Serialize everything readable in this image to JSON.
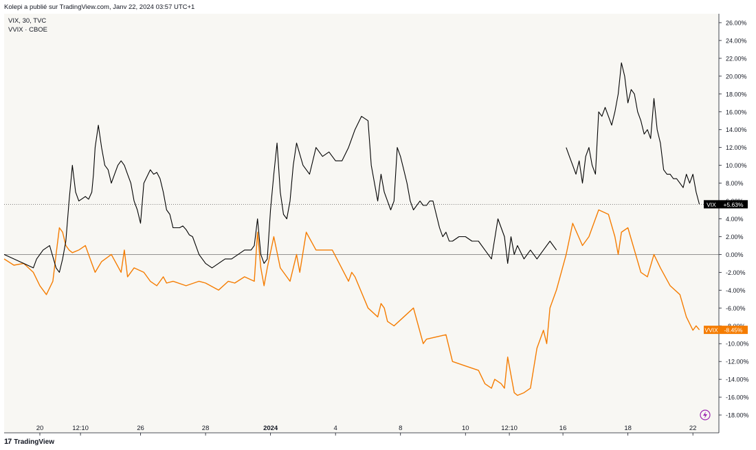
{
  "header": {
    "published": "Kolepi a publié sur TradingView.com, Janv 22, 2024 03:57 UTC+1"
  },
  "legend": {
    "line1": "VIX, 30, TVC",
    "line2": "VVIX · CBOE"
  },
  "footer": {
    "brand": "TradingView",
    "logo": "17"
  },
  "colors": {
    "background": "#f8f7f3",
    "vix": "#000000",
    "vvix": "#f57c00",
    "grid": "#555555"
  },
  "chart_data": {
    "type": "line",
    "ylabel": "",
    "ylim": [
      -20,
      27
    ],
    "yticks": [
      26,
      24,
      22,
      20,
      18,
      16,
      14,
      12,
      10,
      8,
      6,
      4,
      2,
      0,
      -2,
      -4,
      -6,
      -8,
      -10,
      -12,
      -14,
      -16,
      -18
    ],
    "ytick_labels": [
      "26.00%",
      "24.00%",
      "22.00%",
      "20.00%",
      "18.00%",
      "16.00%",
      "14.00%",
      "12.00%",
      "10.00%",
      "8.00%",
      "6.00%",
      "4.00%",
      "2.00%",
      "0.00%",
      "-2.00%",
      "-4.00%",
      "-6.00%",
      "-8.00%",
      "-10.00%",
      "-12.00%",
      "-14.00%",
      "-16.00%",
      "-18.00%"
    ],
    "xlim": [
      0,
      22
    ],
    "xticks": [
      {
        "x": 1.1,
        "label": "20"
      },
      {
        "x": 2.35,
        "label": "12:10"
      },
      {
        "x": 4.2,
        "label": "26"
      },
      {
        "x": 6.2,
        "label": "28"
      },
      {
        "x": 8.2,
        "label": "2024",
        "bold": true
      },
      {
        "x": 10.2,
        "label": "4"
      },
      {
        "x": 12.2,
        "label": "8"
      },
      {
        "x": 14.2,
        "label": "10"
      },
      {
        "x": 15.55,
        "label": "12:10"
      },
      {
        "x": 17.2,
        "label": "16"
      },
      {
        "x": 19.2,
        "label": "18"
      },
      {
        "x": 21.2,
        "label": "22"
      }
    ],
    "reference_line": 5.63,
    "series": [
      {
        "name": "VIX",
        "last_label": "+5.63%",
        "x": [
          0,
          0.3,
          0.6,
          0.9,
          1.0,
          1.2,
          1.4,
          1.6,
          1.7,
          1.8,
          1.9,
          2.0,
          2.1,
          2.2,
          2.3,
          2.5,
          2.6,
          2.7,
          2.75,
          2.8,
          2.9,
          3.0,
          3.1,
          3.2,
          3.3,
          3.4,
          3.5,
          3.6,
          3.7,
          3.8,
          3.9,
          4.0,
          4.1,
          4.2,
          4.3,
          4.5,
          4.6,
          4.7,
          4.8,
          4.9,
          5.0,
          5.1,
          5.2,
          5.4,
          5.5,
          5.6,
          5.7,
          5.8,
          5.9,
          6.0,
          6.2,
          6.4,
          6.6,
          6.8,
          7.0,
          7.2,
          7.4,
          7.6,
          7.7,
          7.8,
          7.9,
          8.0,
          8.1,
          8.2,
          8.3,
          8.4,
          8.5,
          8.6,
          8.7,
          8.8,
          8.9,
          9.0,
          9.2,
          9.4,
          9.6,
          9.8,
          10.0,
          10.2,
          10.4,
          10.6,
          10.8,
          11.0,
          11.2,
          11.3,
          11.4,
          11.5,
          11.6,
          11.7,
          11.8,
          11.9,
          12.0,
          12.1,
          12.2,
          12.3,
          12.4,
          12.5,
          12.6,
          12.8,
          12.9,
          13.0,
          13.1,
          13.2,
          13.4,
          13.5,
          13.6,
          13.7,
          13.8,
          14.0,
          14.2,
          14.4,
          14.6,
          14.8,
          15.0,
          15.2,
          15.4,
          15.5,
          15.6,
          15.7,
          15.8,
          16.0,
          16.2,
          16.4,
          16.6,
          16.8,
          17.0
        ],
        "y": [
          0,
          -0.5,
          -1.0,
          -1.5,
          -0.5,
          0.5,
          1.0,
          -1.5,
          -2.0,
          -0.5,
          1.5,
          6.0,
          10.0,
          7.0,
          6.0,
          6.5,
          6.2,
          7.0,
          9.0,
          12.0,
          14.5,
          12.0,
          10.0,
          9.5,
          8.0,
          9.0,
          10.0,
          10.5,
          10.0,
          9.0,
          8.0,
          6.0,
          5.0,
          3.5,
          8.0,
          9.5,
          9.0,
          9.2,
          8.5,
          7.0,
          5.0,
          4.5,
          3.0,
          3.0,
          3.2,
          2.8,
          2.2,
          2.0,
          1.0,
          0,
          -1.0,
          -1.5,
          -1.0,
          -0.5,
          -0.5,
          0,
          0.5,
          0.5,
          1.0,
          4.0,
          0,
          -1.0,
          -0.5,
          5.0,
          9.0,
          12.5,
          7.0,
          4.5,
          4.0,
          6.0,
          10.0,
          12.5,
          10.0,
          9.0,
          12.0,
          11.0,
          11.5,
          10.5,
          10.5,
          12.0,
          14.0,
          15.5,
          15.0,
          10.0,
          8.0,
          6.0,
          9.0,
          7.0,
          6.0,
          5.0,
          6.0,
          12.0,
          11.0,
          9.5,
          8.0,
          6.0,
          5.0,
          6.0,
          5.5,
          5.5,
          6.0,
          6.0,
          3.0,
          2.0,
          2.5,
          1.5,
          1.5,
          2.0,
          2.0,
          1.5,
          1.5,
          0.5,
          -0.5,
          4.0,
          2.0,
          -1.0,
          2.0,
          0,
          1.0,
          -0.5,
          0.5,
          -0.5,
          0.5,
          1.5,
          0.5
        ]
      },
      {
        "name": "VIX (segment 2)",
        "x": [
          17.3,
          17.4,
          17.5,
          17.6,
          17.7,
          17.8,
          17.9,
          18.0,
          18.1,
          18.2,
          18.3,
          18.4,
          18.5,
          18.6,
          18.7,
          18.8,
          18.9,
          19.0,
          19.1,
          19.2,
          19.3,
          19.4,
          19.5,
          19.6,
          19.7,
          19.8,
          19.9,
          20.0,
          20.1,
          20.2,
          20.3,
          20.4,
          20.5,
          20.6,
          20.7,
          20.8,
          20.9,
          21.0,
          21.1,
          21.2,
          21.3,
          21.4
        ],
        "y": [
          12.0,
          11.0,
          10.0,
          9.0,
          10.5,
          8.0,
          11.0,
          12.0,
          10.0,
          9.0,
          16.0,
          15.5,
          16.5,
          15.5,
          14.5,
          16.0,
          18.0,
          21.5,
          20.0,
          17.0,
          18.5,
          18.0,
          16.0,
          15.0,
          13.5,
          14.0,
          13.0,
          17.5,
          14.0,
          12.5,
          9.5,
          9.0,
          9.0,
          8.5,
          8.5,
          8.0,
          7.5,
          9.0,
          8.0,
          9.0,
          7.0,
          5.63
        ]
      },
      {
        "name": "VVIX",
        "last_label": "-8.45%",
        "x": [
          0,
          0.3,
          0.6,
          0.9,
          1.1,
          1.3,
          1.5,
          1.6,
          1.7,
          1.8,
          1.9,
          2.0,
          2.1,
          2.3,
          2.5,
          2.7,
          2.8,
          3.0,
          3.3,
          3.6,
          3.7,
          3.8,
          4.0,
          4.3,
          4.5,
          4.7,
          4.9,
          5.0,
          5.2,
          5.6,
          6.0,
          6.2,
          6.6,
          6.9,
          7.1,
          7.4,
          7.7,
          7.8,
          7.9,
          8.0,
          8.1,
          8.3,
          8.5,
          8.8,
          9.0,
          9.1,
          9.3,
          9.6,
          9.8,
          10.1,
          10.6,
          10.7,
          10.8,
          11.2,
          11.5,
          11.6,
          11.7,
          11.8,
          12.0,
          12.6,
          12.9,
          13.0,
          13.6,
          13.8,
          14.2,
          14.6,
          14.8,
          15.0,
          15.1,
          15.3,
          15.4,
          15.5,
          15.7,
          15.8,
          16.0,
          16.2,
          16.4,
          16.6,
          16.7,
          16.8,
          17.0,
          17.3,
          17.5,
          17.8,
          18.0,
          18.3,
          18.6,
          18.8,
          18.9,
          19.0,
          19.2,
          19.6,
          19.8,
          20.0,
          20.2,
          20.5,
          20.8,
          21.0,
          21.2,
          21.3,
          21.4
        ],
        "y": [
          -0.5,
          -1.2,
          -1.0,
          -2.0,
          -3.5,
          -4.5,
          -3.0,
          0,
          3.0,
          2.5,
          1.0,
          0.5,
          0.2,
          0.5,
          1.0,
          -1.0,
          -2.0,
          -0.8,
          0,
          -2.0,
          0.5,
          -2.5,
          -1.5,
          -2.0,
          -3.0,
          -3.5,
          -2.5,
          -3.2,
          -3.0,
          -3.5,
          -3.0,
          -3.2,
          -4.0,
          -3.0,
          -3.2,
          -2.5,
          -3.0,
          2.5,
          -1.5,
          -3.5,
          -1.5,
          2.0,
          -1.5,
          -3.0,
          0,
          -2.0,
          2.5,
          0.5,
          0.5,
          0.5,
          -3.0,
          -2.0,
          -2.5,
          -6.0,
          -7.0,
          -5.5,
          -6.0,
          -7.5,
          -8.0,
          -6.0,
          -10.0,
          -9.5,
          -9.0,
          -12.0,
          -12.5,
          -13.0,
          -14.5,
          -15.0,
          -14.0,
          -14.5,
          -15.0,
          -11.5,
          -15.5,
          -15.8,
          -15.5,
          -15.0,
          -10.5,
          -8.5,
          -10.0,
          -6.0,
          -4.0,
          0,
          3.5,
          1.0,
          2.0,
          5.0,
          4.5,
          2.0,
          0,
          2.5,
          3.0,
          -2.0,
          -2.5,
          0,
          -1.5,
          -3.5,
          -4.5,
          -7.0,
          -8.5,
          -8.0,
          -8.45
        ]
      }
    ]
  }
}
